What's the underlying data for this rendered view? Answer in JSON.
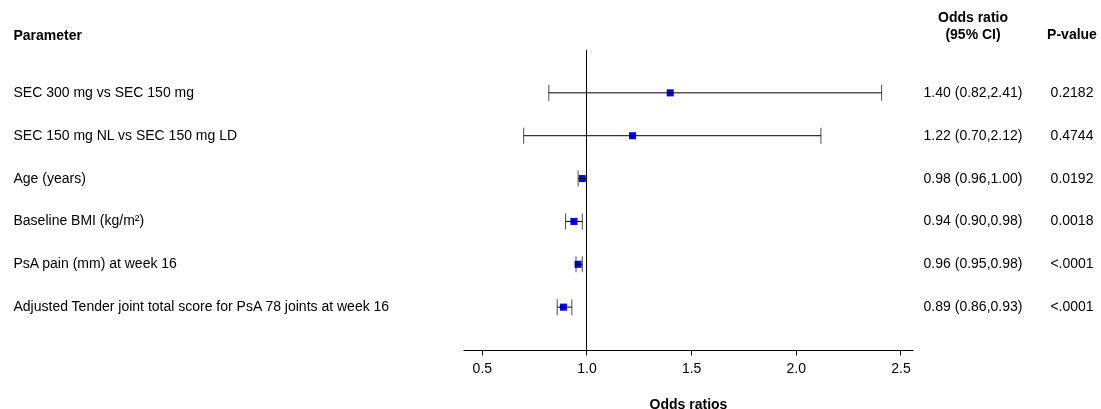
{
  "chart_data": {
    "type": "scatter",
    "orientation": "horizontal",
    "ylabel": "Parameter",
    "xlabel": "Odds ratios",
    "categories": [
      "SEC 300 mg vs SEC 150 mg",
      "SEC 150 mg NL vs SEC 150 mg LD",
      "Age (years)",
      "Baseline BMI (kg/m²)",
      "PsA pain (mm) at week 16",
      "Adjusted Tender joint total score for PsA 78 joints at week 16"
    ],
    "color": "#0000ff",
    "values": [
      1.4,
      1.22,
      0.98,
      0.94,
      0.96,
      0.89
    ],
    "errors": [
      [
        0.82,
        2.41
      ],
      [
        0.7,
        2.12
      ],
      [
        0.96,
        1.0
      ],
      [
        0.9,
        0.98
      ],
      [
        0.95,
        0.98
      ],
      [
        0.86,
        0.93
      ]
    ],
    "value_labels": [
      "1.40 (0.82,2.41)",
      "1.22 (0.70,2.12)",
      "0.98 (0.96,1.00)",
      "0.94 (0.90,0.98)",
      "0.96 (0.95,0.98)",
      "0.89 (0.86,0.93)"
    ],
    "xlim": [
      0.41,
      2.56
    ],
    "xticks": [
      {
        "value": 0.5,
        "label": "0.5"
      },
      {
        "value": 1,
        "label": "1.0"
      },
      {
        "value": 1.5,
        "label": "1.5"
      },
      {
        "value": 2,
        "label": "2.0"
      },
      {
        "value": 2.5,
        "label": "2.5"
      }
    ],
    "ref_lines": [
      {
        "axis": "x",
        "value": 1,
        "color": "#000000"
      }
    ],
    "marker": "square",
    "grid": false,
    "legend": false,
    "annotations": [
      "Odds ratio (95% CI)",
      "P-value",
      "0.2182",
      "0.4744",
      "0.0192",
      "0.0018",
      "<.0001",
      "<.0001"
    ]
  }
}
